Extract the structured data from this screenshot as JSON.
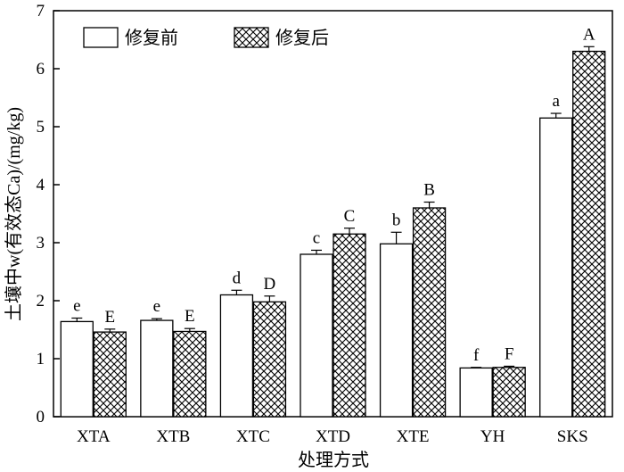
{
  "chart_data": {
    "type": "bar",
    "xlabel": "处理方式",
    "ylabel": "土壤中w(有效态Ca)/(mg/kg)",
    "ylim": [
      0,
      7
    ],
    "yticks": [
      "0",
      "1",
      "2",
      "3",
      "4",
      "5",
      "6",
      "7"
    ],
    "categories": [
      "XTA",
      "XTB",
      "XTC",
      "XTD",
      "XTE",
      "YH",
      "SKS"
    ],
    "legend_position": "top-left",
    "series": [
      {
        "name": "修复前",
        "pattern": "open",
        "values": [
          1.64,
          1.66,
          2.1,
          2.8,
          2.98,
          0.84,
          5.15
        ],
        "errors": [
          0.06,
          0.03,
          0.08,
          0.07,
          0.2,
          0.01,
          0.08
        ],
        "labels": [
          "e",
          "e",
          "d",
          "c",
          "b",
          "f",
          "a"
        ]
      },
      {
        "name": "修复后",
        "pattern": "crosshatch",
        "values": [
          1.46,
          1.47,
          1.98,
          3.15,
          3.6,
          0.85,
          6.3
        ],
        "errors": [
          0.05,
          0.05,
          0.1,
          0.1,
          0.1,
          0.02,
          0.08
        ],
        "labels": [
          "E",
          "E",
          "D",
          "C",
          "B",
          "F",
          "A"
        ]
      }
    ]
  }
}
